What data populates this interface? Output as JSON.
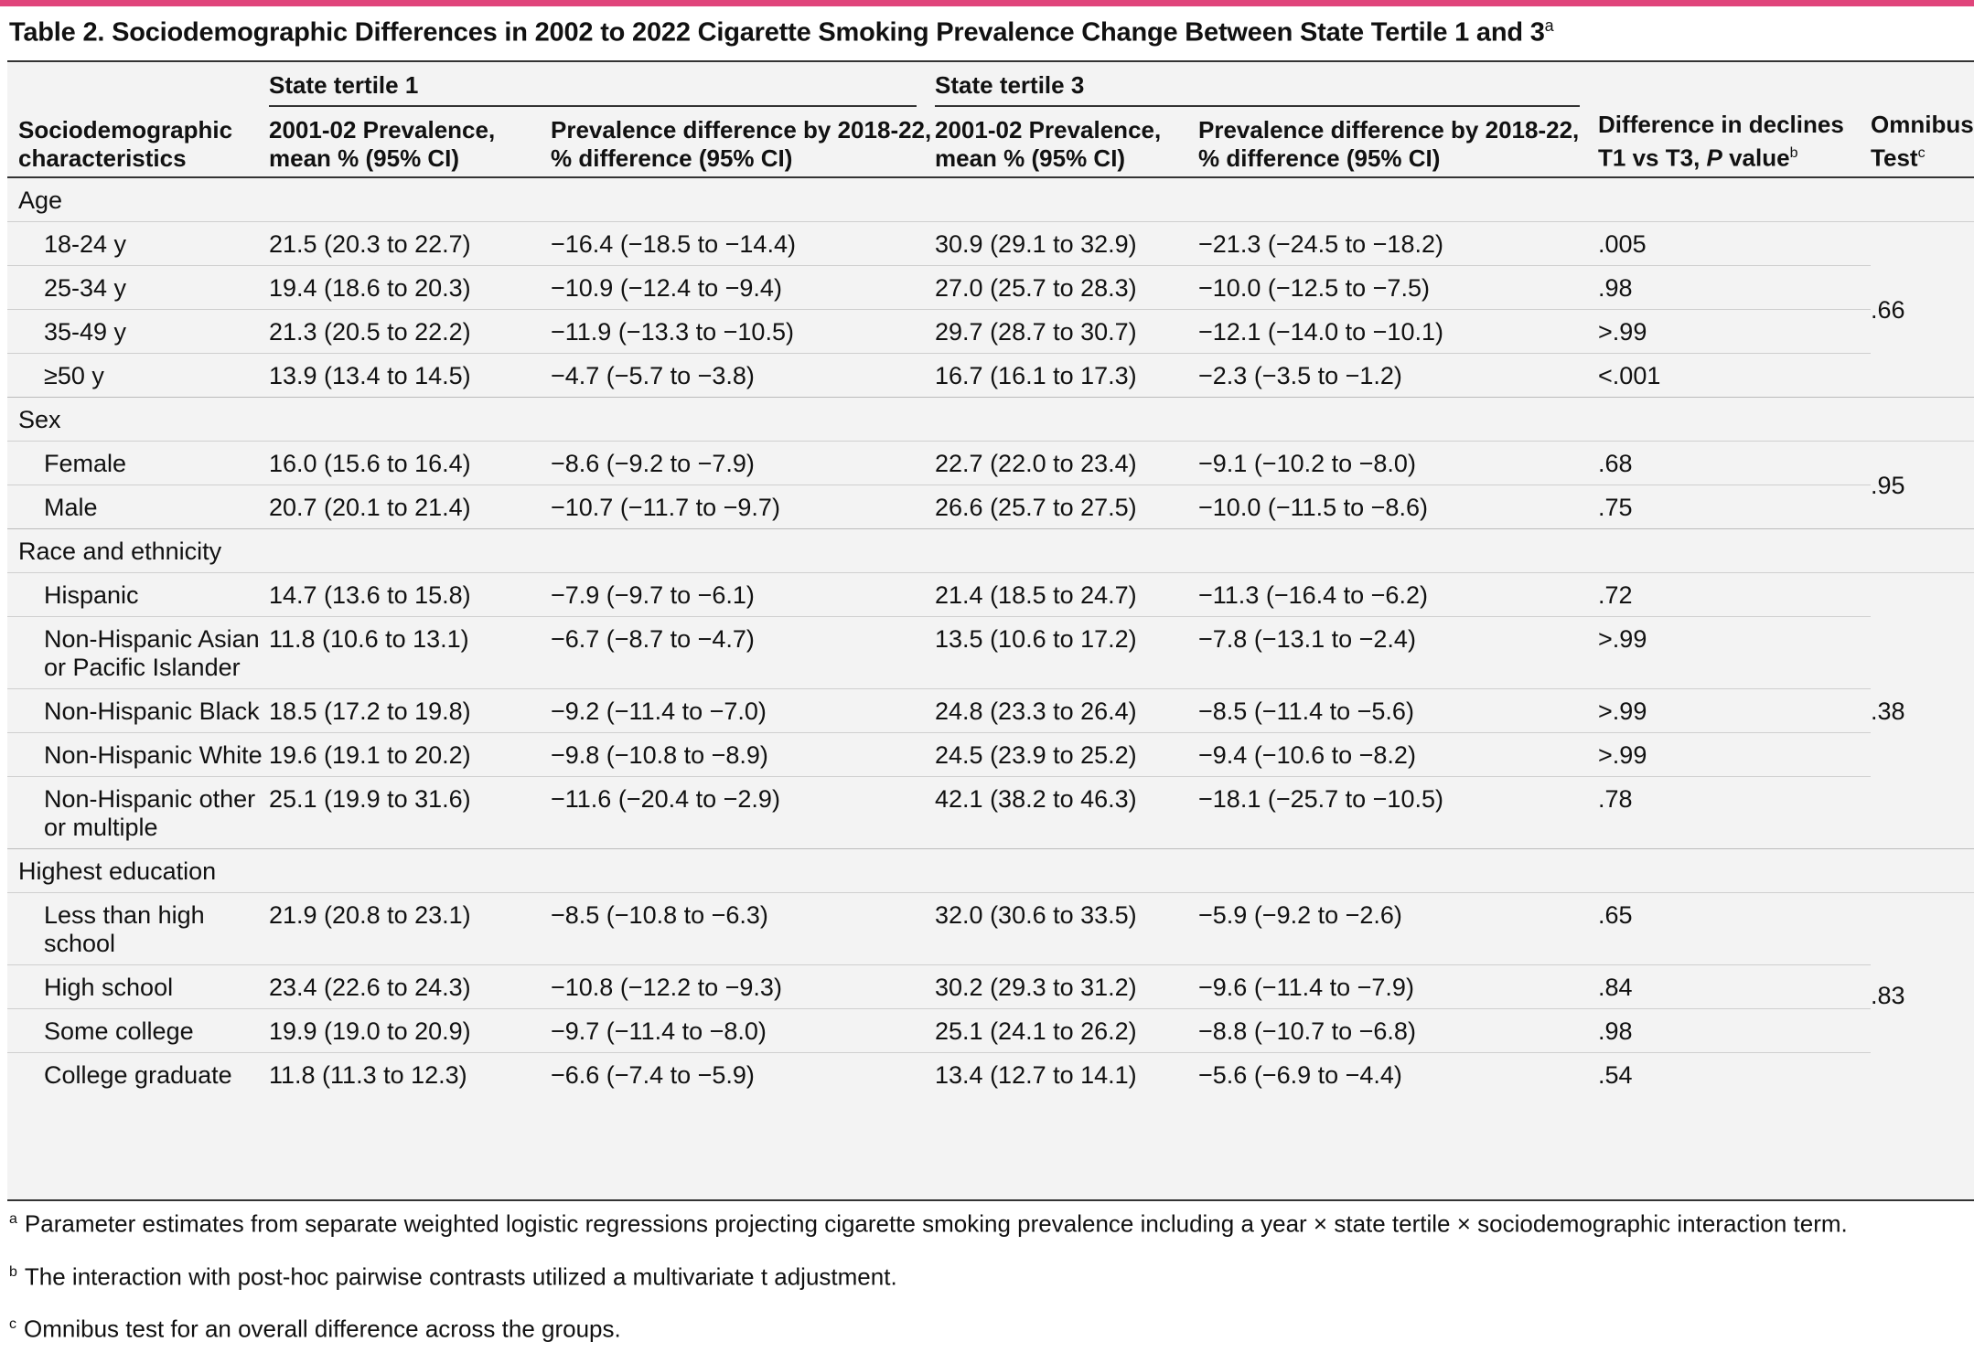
{
  "title": "Table 2. Sociodemographic Differences in 2002 to 2022 Cigarette Smoking Prevalence Change Between State Tertile 1 and 3",
  "title_sup": "a",
  "colors": {
    "accent": "#e0457b",
    "table_bg": "#f3f3f3"
  },
  "headers": {
    "col1": "Sociodemographic characteristics",
    "group1": "State tertile 1",
    "group2": "State tertile 3",
    "t1_prev": "2001-02 Prevalence, mean % (95% CI)",
    "t1_diff": "Prevalence difference by 2018-22, % difference (95% CI)",
    "t3_prev": "2001-02 Prevalence, mean % (95% CI)",
    "t3_diff": "Prevalence difference by 2018-22, % difference (95% CI)",
    "decl_pre": "Difference in declines T1 vs T3, ",
    "decl_p": "P",
    "decl_post": " value",
    "decl_sup": "b",
    "omni": "Omnibus Test",
    "omni_sup": "c"
  },
  "categories": [
    {
      "name": "Age",
      "omnibus": ".66",
      "rows": [
        {
          "label": "18-24 y",
          "t1_prev": "21.5 (20.3 to 22.7)",
          "t1_diff": "−16.4 (−18.5 to −14.4)",
          "t3_prev": "30.9 (29.1 to 32.9)",
          "t3_diff": "−21.3 (−24.5 to −18.2)",
          "p": ".005"
        },
        {
          "label": "25-34 y",
          "t1_prev": "19.4 (18.6 to 20.3)",
          "t1_diff": "−10.9 (−12.4 to −9.4)",
          "t3_prev": "27.0 (25.7 to 28.3)",
          "t3_diff": "−10.0 (−12.5 to −7.5)",
          "p": ".98"
        },
        {
          "label": "35-49 y",
          "t1_prev": "21.3 (20.5 to 22.2)",
          "t1_diff": "−11.9 (−13.3 to −10.5)",
          "t3_prev": "29.7 (28.7 to 30.7)",
          "t3_diff": "−12.1 (−14.0 to −10.1)",
          "p": ">.99"
        },
        {
          "label": "≥50 y",
          "t1_prev": "13.9 (13.4 to 14.5)",
          "t1_diff": "−4.7 (−5.7 to −3.8)",
          "t3_prev": "16.7 (16.1 to 17.3)",
          "t3_diff": "−2.3 (−3.5 to −1.2)",
          "p": "<.001"
        }
      ]
    },
    {
      "name": "Sex",
      "omnibus": ".95",
      "rows": [
        {
          "label": "Female",
          "t1_prev": "16.0 (15.6 to 16.4)",
          "t1_diff": "−8.6 (−9.2 to −7.9)",
          "t3_prev": "22.7 (22.0 to 23.4)",
          "t3_diff": "−9.1 (−10.2 to −8.0)",
          "p": ".68"
        },
        {
          "label": "Male",
          "t1_prev": "20.7 (20.1 to 21.4)",
          "t1_diff": "−10.7 (−11.7 to −9.7)",
          "t3_prev": "26.6 (25.7 to 27.5)",
          "t3_diff": "−10.0 (−11.5 to −8.6)",
          "p": ".75"
        }
      ]
    },
    {
      "name": "Race and ethnicity",
      "omnibus": ".38",
      "rows": [
        {
          "label": "Hispanic",
          "t1_prev": "14.7 (13.6 to 15.8)",
          "t1_diff": "−7.9 (−9.7 to −6.1)",
          "t3_prev": "21.4 (18.5 to 24.7)",
          "t3_diff": "−11.3 (−16.4 to −6.2)",
          "p": ".72"
        },
        {
          "label": "Non-Hispanic Asian or Pacific Islander",
          "t1_prev": "11.8 (10.6 to 13.1)",
          "t1_diff": "−6.7 (−8.7 to −4.7)",
          "t3_prev": "13.5 (10.6 to 17.2)",
          "t3_diff": "−7.8 (−13.1 to −2.4)",
          "p": ">.99"
        },
        {
          "label": "Non-Hispanic Black",
          "t1_prev": "18.5 (17.2 to 19.8)",
          "t1_diff": "−9.2 (−11.4 to −7.0)",
          "t3_prev": "24.8 (23.3 to 26.4)",
          "t3_diff": "−8.5 (−11.4 to −5.6)",
          "p": ">.99"
        },
        {
          "label": "Non-Hispanic White",
          "t1_prev": "19.6 (19.1 to 20.2)",
          "t1_diff": "−9.8 (−10.8 to −8.9)",
          "t3_prev": "24.5 (23.9 to 25.2)",
          "t3_diff": "−9.4 (−10.6 to −8.2)",
          "p": ">.99"
        },
        {
          "label": "Non-Hispanic other or multiple",
          "t1_prev": "25.1 (19.9 to 31.6)",
          "t1_diff": "−11.6 (−20.4 to −2.9)",
          "t3_prev": "42.1 (38.2 to 46.3)",
          "t3_diff": "−18.1 (−25.7 to −10.5)",
          "p": ".78"
        }
      ]
    },
    {
      "name": "Highest education",
      "omnibus": ".83",
      "rows": [
        {
          "label": "Less than high school",
          "t1_prev": "21.9 (20.8 to 23.1)",
          "t1_diff": "−8.5 (−10.8 to −6.3)",
          "t3_prev": "32.0 (30.6 to 33.5)",
          "t3_diff": "−5.9 (−9.2 to −2.6)",
          "p": ".65"
        },
        {
          "label": "High school",
          "t1_prev": "23.4 (22.6 to 24.3)",
          "t1_diff": "−10.8 (−12.2 to −9.3)",
          "t3_prev": "30.2 (29.3 to 31.2)",
          "t3_diff": "−9.6 (−11.4 to −7.9)",
          "p": ".84"
        },
        {
          "label": "Some college",
          "t1_prev": "19.9 (19.0 to 20.9)",
          "t1_diff": "−9.7 (−11.4 to −8.0)",
          "t3_prev": "25.1 (24.1 to 26.2)",
          "t3_diff": "−8.8 (−10.7 to −6.8)",
          "p": ".98"
        },
        {
          "label": "College graduate",
          "t1_prev": "11.8 (11.3 to 12.3)",
          "t1_diff": "−6.6 (−7.4 to −5.9)",
          "t3_prev": "13.4 (12.7 to 14.1)",
          "t3_diff": "−5.6 (−6.9 to −4.4)",
          "p": ".54"
        }
      ]
    }
  ],
  "footnotes": [
    {
      "mark": "a",
      "text": "Parameter estimates from separate weighted logistic regressions projecting cigarette smoking prevalence including a year × state tertile × sociodemographic interaction term."
    },
    {
      "mark": "b",
      "text": "The interaction with post-hoc pairwise contrasts utilized a multivariate t adjustment."
    },
    {
      "mark": "c",
      "text": "Omnibus test for an overall difference across the groups."
    }
  ]
}
